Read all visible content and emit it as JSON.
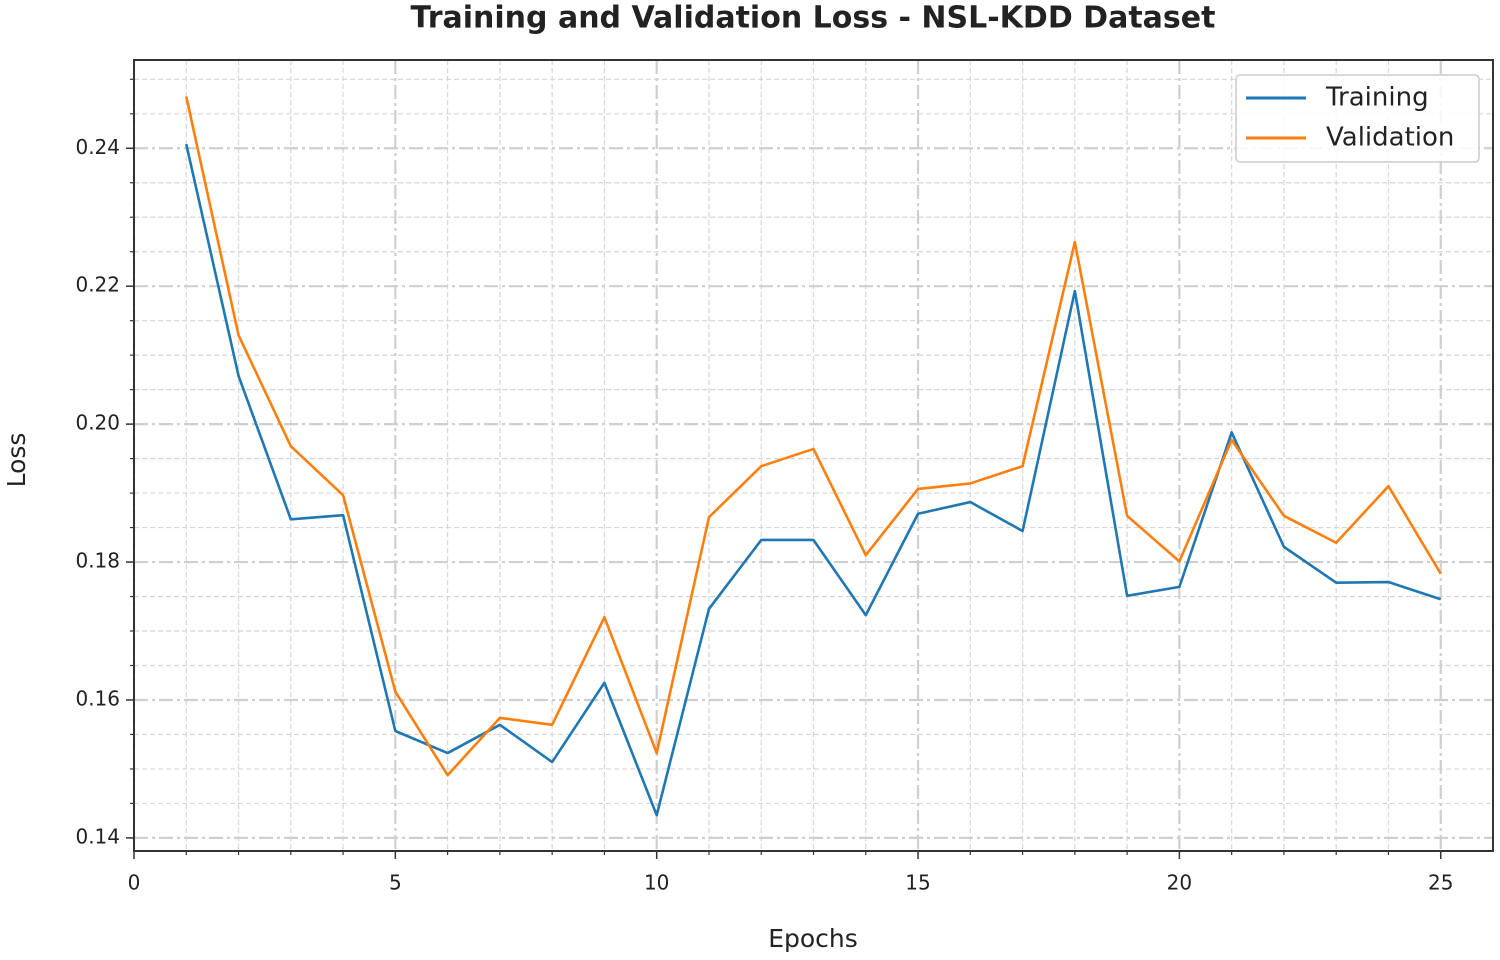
{
  "chart_data": {
    "type": "line",
    "title": "Training and Validation Loss - NSL-KDD Dataset",
    "x_label": "Epochs",
    "y_label": "Loss",
    "x": [
      1,
      2,
      3,
      4,
      5,
      6,
      7,
      8,
      9,
      10,
      11,
      12,
      13,
      14,
      15,
      16,
      17,
      18,
      19,
      20,
      21,
      22,
      23,
      24,
      25
    ],
    "series": [
      {
        "name": "Training",
        "color": "#1f77b4",
        "values": [
          0.2406,
          0.207,
          0.1862,
          0.1868,
          0.1555,
          0.1523,
          0.1564,
          0.151,
          0.1625,
          0.1433,
          0.1732,
          0.1832,
          0.1832,
          0.1723,
          0.187,
          0.1887,
          0.1845,
          0.2193,
          0.1751,
          0.1764,
          0.1988,
          0.1822,
          0.177,
          0.1771,
          0.1746
        ]
      },
      {
        "name": "Validation",
        "color": "#ff7f0e",
        "values": [
          0.2475,
          0.2129,
          0.1968,
          0.1897,
          0.1612,
          0.1491,
          0.1574,
          0.1564,
          0.172,
          0.1523,
          0.1865,
          0.1939,
          0.1964,
          0.181,
          0.1906,
          0.1914,
          0.1939,
          0.2264,
          0.1867,
          0.1801,
          0.1977,
          0.1867,
          0.1828,
          0.191,
          0.1783
        ]
      }
    ],
    "xlim": [
      0,
      26
    ],
    "ylim": [
      0.1381,
      0.2528
    ],
    "xticks": [
      0,
      5,
      10,
      15,
      20,
      25
    ],
    "yticks": [
      0.14,
      0.16,
      0.18,
      {
        "value": 0.2,
        "label": "0.20"
      },
      0.22,
      0.24
    ],
    "xticks_minor": [
      1,
      2,
      3,
      4,
      6,
      7,
      8,
      9,
      11,
      12,
      13,
      14,
      16,
      17,
      18,
      19,
      21,
      22,
      23,
      24
    ],
    "yticks_minor": [
      0.145,
      0.15,
      0.155,
      0.165,
      0.17,
      0.175,
      0.185,
      0.19,
      0.195,
      0.205,
      0.21,
      0.215,
      0.225,
      0.23,
      0.235,
      0.245,
      0.25
    ],
    "grid": true,
    "legend": "upper right"
  }
}
